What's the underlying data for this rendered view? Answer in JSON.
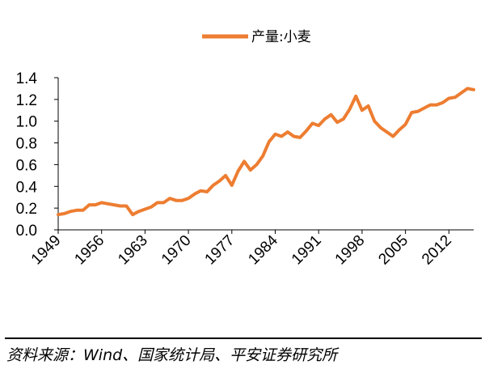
{
  "chart_data": {
    "type": "line",
    "title": "",
    "xlabel": "",
    "ylabel": "",
    "series": [
      {
        "name": "产量:小麦",
        "color": "#ED7D31",
        "x": [
          1949,
          1950,
          1951,
          1952,
          1953,
          1954,
          1955,
          1956,
          1957,
          1958,
          1959,
          1960,
          1961,
          1962,
          1963,
          1964,
          1965,
          1966,
          1967,
          1968,
          1969,
          1970,
          1971,
          1972,
          1973,
          1974,
          1975,
          1976,
          1977,
          1978,
          1979,
          1980,
          1981,
          1982,
          1983,
          1984,
          1985,
          1986,
          1987,
          1988,
          1989,
          1990,
          1991,
          1992,
          1993,
          1994,
          1995,
          1996,
          1997,
          1998,
          1999,
          2000,
          2001,
          2002,
          2003,
          2004,
          2005,
          2006,
          2007,
          2008,
          2009,
          2010,
          2011,
          2012,
          2013,
          2014,
          2015,
          2016
        ],
        "values": [
          0.14,
          0.15,
          0.17,
          0.18,
          0.18,
          0.23,
          0.23,
          0.25,
          0.24,
          0.23,
          0.22,
          0.22,
          0.14,
          0.17,
          0.19,
          0.21,
          0.25,
          0.25,
          0.29,
          0.27,
          0.27,
          0.29,
          0.33,
          0.36,
          0.35,
          0.41,
          0.45,
          0.5,
          0.41,
          0.54,
          0.63,
          0.55,
          0.6,
          0.68,
          0.81,
          0.88,
          0.86,
          0.9,
          0.86,
          0.85,
          0.91,
          0.98,
          0.96,
          1.02,
          1.06,
          0.99,
          1.02,
          1.11,
          1.23,
          1.1,
          1.14,
          1.0,
          0.94,
          0.9,
          0.86,
          0.92,
          0.97,
          1.08,
          1.09,
          1.12,
          1.15,
          1.15,
          1.17,
          1.21,
          1.22,
          1.26,
          1.3,
          1.29
        ]
      }
    ],
    "xticks": [
      1949,
      1956,
      1963,
      1970,
      1977,
      1984,
      1991,
      1998,
      2005,
      2012
    ],
    "yticks": [
      "0.0",
      "0.2",
      "0.4",
      "0.6",
      "0.8",
      "1.0",
      "1.2",
      "1.4"
    ],
    "xlim": [
      1949,
      2016
    ],
    "ylim": [
      0,
      1.4
    ],
    "grid": false,
    "legend_position": "top-center"
  },
  "source": "资料来源：Wind、国家统计局、平安证券研究所"
}
